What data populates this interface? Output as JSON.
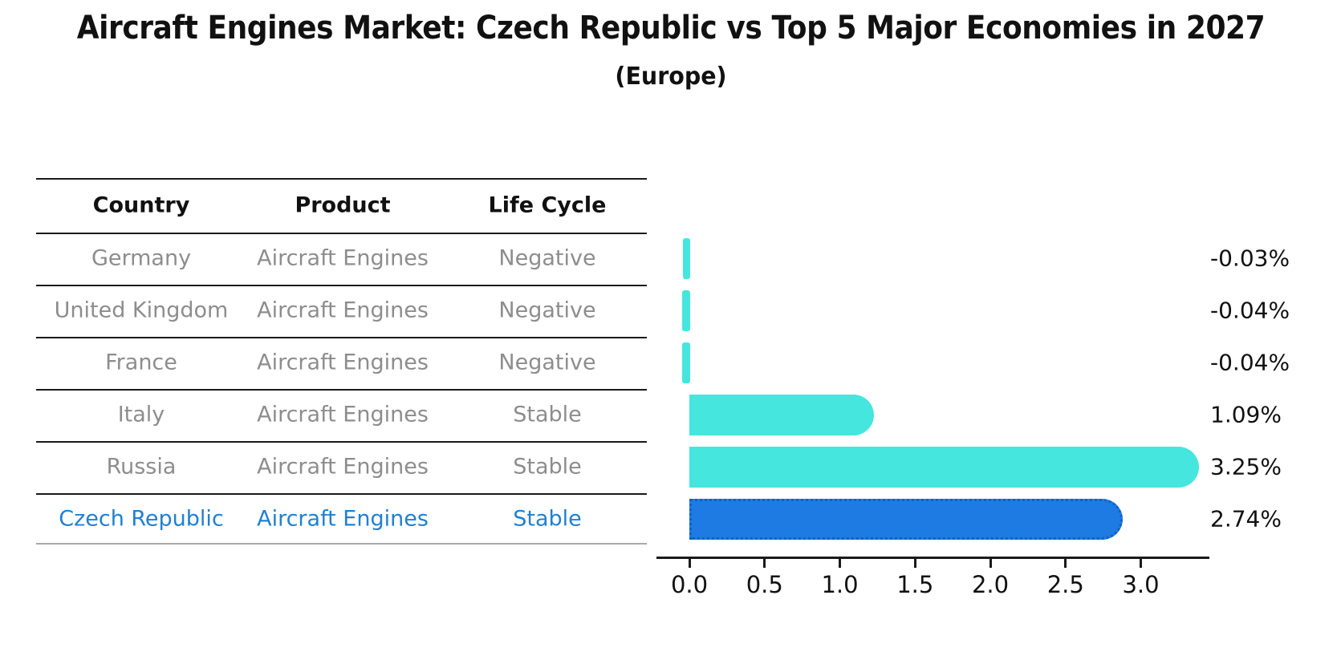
{
  "page": {
    "title": "Aircraft Engines Market: Czech Republic vs Top 5 Major Economies in 2027",
    "subtitle": "(Europe)"
  },
  "table": {
    "headers": [
      "Country",
      "Product",
      "Life Cycle"
    ],
    "rows": [
      {
        "country": "Germany",
        "product": "Aircraft Engines",
        "life_cycle": "Negative",
        "highlight": false
      },
      {
        "country": "United Kingdom",
        "product": "Aircraft Engines",
        "life_cycle": "Negative",
        "highlight": false
      },
      {
        "country": "France",
        "product": "Aircraft Engines",
        "life_cycle": "Negative",
        "highlight": false
      },
      {
        "country": "Italy",
        "product": "Aircraft Engines",
        "life_cycle": "Stable",
        "highlight": false
      },
      {
        "country": "Russia",
        "product": "Aircraft Engines",
        "life_cycle": "Stable",
        "highlight": false
      },
      {
        "country": "Czech Republic",
        "product": "Aircraft Engines",
        "life_cycle": "Stable",
        "highlight": true
      }
    ]
  },
  "chart_data": {
    "type": "bar",
    "orientation": "horizontal",
    "title": "Aircraft Engines Market: Czech Republic vs Top 5 Major Economies in 2027 (Europe)",
    "categories": [
      "Germany",
      "United Kingdom",
      "France",
      "Italy",
      "Russia",
      "Czech Republic"
    ],
    "values": [
      -0.03,
      -0.04,
      -0.04,
      1.09,
      3.25,
      2.74
    ],
    "value_labels": [
      "-0.03%",
      "-0.04%",
      "-0.04%",
      "1.09%",
      "3.25%",
      "2.74%"
    ],
    "unit": "%",
    "x_ticks": [
      0.0,
      0.5,
      1.0,
      1.5,
      2.0,
      2.5,
      3.0
    ],
    "x_tick_labels": [
      "0.0",
      "0.5",
      "1.0",
      "1.5",
      "2.0",
      "2.5",
      "3.0"
    ],
    "xlim": [
      -0.22,
      3.45
    ],
    "grid": false,
    "legend": false,
    "highlight_index": 5
  },
  "colors": {
    "bar_cyan": "#45E6DE",
    "bar_blue": "#1E7BE3",
    "highlight_text": "#2180D0",
    "gray_text": "#8d8d8d",
    "dark_text": "#111111",
    "table_line": "#1a1a1a",
    "table_bottom_line": "#a8a8a8",
    "axis": "#1a1a1a"
  }
}
